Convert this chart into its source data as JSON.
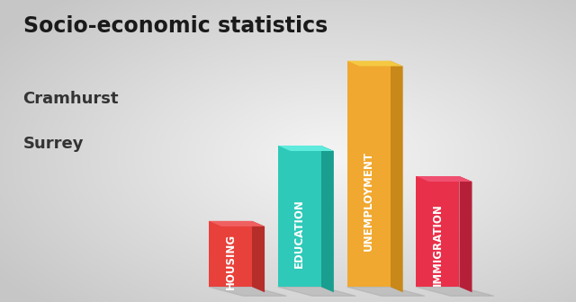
{
  "title": "Socio-economic statistics",
  "subtitle1": "Cramhurst",
  "subtitle2": "Surrey",
  "categories": [
    "HOUSING",
    "EDUCATION",
    "UNEMPLOYMENT",
    "IMMIGRATION"
  ],
  "values": [
    0.28,
    0.6,
    0.96,
    0.47
  ],
  "front_colors": [
    "#E8403A",
    "#2EC9B8",
    "#F0A830",
    "#E8304A"
  ],
  "side_colors": [
    "#B52E2A",
    "#1A9E8F",
    "#C8881A",
    "#B52038"
  ],
  "top_colors": [
    "#F06060",
    "#5EEADC",
    "#F5C842",
    "#F05070"
  ],
  "background_color": "#C8C8C8",
  "title_fontsize": 17,
  "subtitle_fontsize": 13,
  "label_fontsize": 8.5
}
